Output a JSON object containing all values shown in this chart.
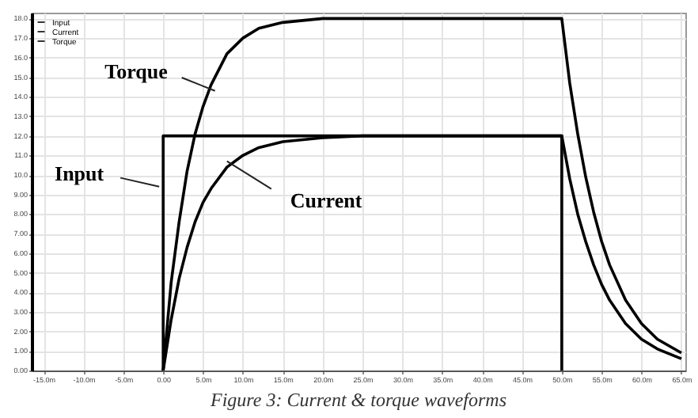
{
  "chart_data": {
    "type": "line",
    "title": "Figure 3: Current & torque waveforms",
    "xlim": [
      -16.5,
      65.5
    ],
    "xticks": [
      {
        "value": -15,
        "label": "-15.0m"
      },
      {
        "value": -10,
        "label": "-10.0m"
      },
      {
        "value": -5,
        "label": "-5.0m"
      },
      {
        "value": 0,
        "label": "0.00"
      },
      {
        "value": 5,
        "label": "5.0m"
      },
      {
        "value": 10,
        "label": "10.0m"
      },
      {
        "value": 15,
        "label": "15.0m"
      },
      {
        "value": 20,
        "label": "20.0m"
      },
      {
        "value": 25,
        "label": "25.0m"
      },
      {
        "value": 30,
        "label": "30.0m"
      },
      {
        "value": 35,
        "label": "35.0m"
      },
      {
        "value": 40,
        "label": "40.0m"
      },
      {
        "value": 45,
        "label": "45.0m"
      },
      {
        "value": 50,
        "label": "50.0m"
      },
      {
        "value": 55,
        "label": "55.0m"
      },
      {
        "value": 60,
        "label": "60.0m"
      },
      {
        "value": 65,
        "label": "65.0m"
      }
    ],
    "ylim": [
      0,
      18.3
    ],
    "yticks": [
      {
        "value": 0,
        "label": "0.00"
      },
      {
        "value": 1,
        "label": "1.00"
      },
      {
        "value": 2,
        "label": "2.00"
      },
      {
        "value": 3,
        "label": "3.00"
      },
      {
        "value": 4,
        "label": "4.00"
      },
      {
        "value": 5,
        "label": "5.00"
      },
      {
        "value": 6,
        "label": "6.00"
      },
      {
        "value": 7,
        "label": "7.00"
      },
      {
        "value": 8,
        "label": "8.00"
      },
      {
        "value": 9,
        "label": "9.00"
      },
      {
        "value": 10,
        "label": "10.0"
      },
      {
        "value": 11,
        "label": "11.0"
      },
      {
        "value": 12,
        "label": "12.0"
      },
      {
        "value": 13,
        "label": "13.0"
      },
      {
        "value": 14,
        "label": "14.0"
      },
      {
        "value": 15,
        "label": "15.0"
      },
      {
        "value": 16,
        "label": "16.0"
      },
      {
        "value": 17,
        "label": "17.0"
      },
      {
        "value": 18,
        "label": "18.0"
      }
    ],
    "grid": true,
    "legend": "top left",
    "line_style": "solid",
    "series": [
      {
        "name": "Input",
        "color": "#000000",
        "x": [
          0,
          0,
          50,
          50
        ],
        "values": [
          0,
          12,
          12,
          0
        ]
      },
      {
        "name": "Current",
        "color": "#000000",
        "x": [
          0,
          1,
          2,
          3,
          4,
          5,
          6,
          8,
          10,
          12,
          15,
          20,
          25,
          50,
          51,
          52,
          53,
          54,
          55,
          56,
          58,
          60,
          62,
          65
        ],
        "values": [
          0,
          2.6,
          4.7,
          6.3,
          7.6,
          8.6,
          9.3,
          10.4,
          11,
          11.4,
          11.7,
          11.9,
          12,
          12,
          9.8,
          8,
          6.6,
          5.4,
          4.4,
          3.6,
          2.4,
          1.6,
          1.1,
          0.6
        ]
      },
      {
        "name": "Torque",
        "color": "#000000",
        "x": [
          0,
          1,
          2,
          3,
          4,
          5,
          6,
          8,
          10,
          12,
          15,
          20,
          50,
          51,
          52,
          53,
          54,
          55,
          56,
          58,
          60,
          62,
          65
        ],
        "values": [
          0,
          4.5,
          7.6,
          10.2,
          12.1,
          13.5,
          14.6,
          16.2,
          17,
          17.5,
          17.8,
          18,
          18,
          14.7,
          12.1,
          9.9,
          8.1,
          6.6,
          5.4,
          3.6,
          2.4,
          1.6,
          0.9
        ]
      }
    ],
    "annotations": [
      {
        "text": "Torque",
        "x": 6.5,
        "y": 14.3
      },
      {
        "text": "Input",
        "x": -0.5,
        "y": 9.4
      },
      {
        "text": "Current",
        "x": 8,
        "y": 10.7
      }
    ]
  }
}
